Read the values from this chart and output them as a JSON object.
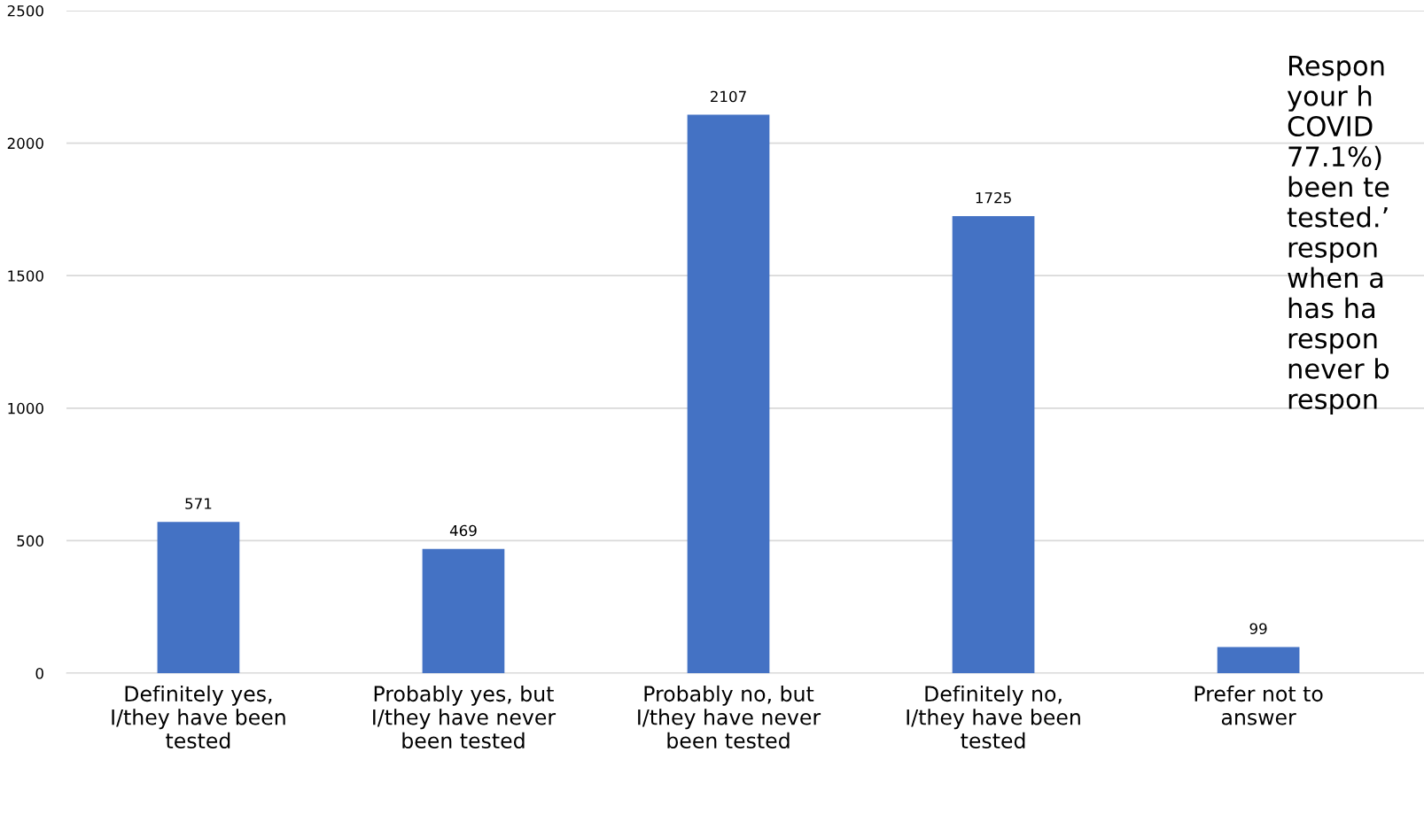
{
  "chart_data": {
    "type": "bar",
    "categories": [
      "Definitely yes, I/they have been tested",
      "Probably yes, but I/they have never been tested",
      "Probably no, but I/they have never been tested",
      "Definitely no, I/they have been tested",
      "Prefer not to answer"
    ],
    "values": [
      571,
      469,
      2107,
      1725,
      99
    ],
    "color": "#4472c4",
    "ylim": [
      0,
      2500
    ],
    "yticks": [
      0,
      500,
      1000,
      1500,
      2000,
      2500
    ],
    "grid": "y",
    "data_labels": true,
    "annotations": [
      "Respon\nyour h\nCOVID\n77.1%)\nbeen te\ntested.’\nrespon\nwhen a\nhas ha\nrespon\nnever b\nrespon"
    ]
  }
}
